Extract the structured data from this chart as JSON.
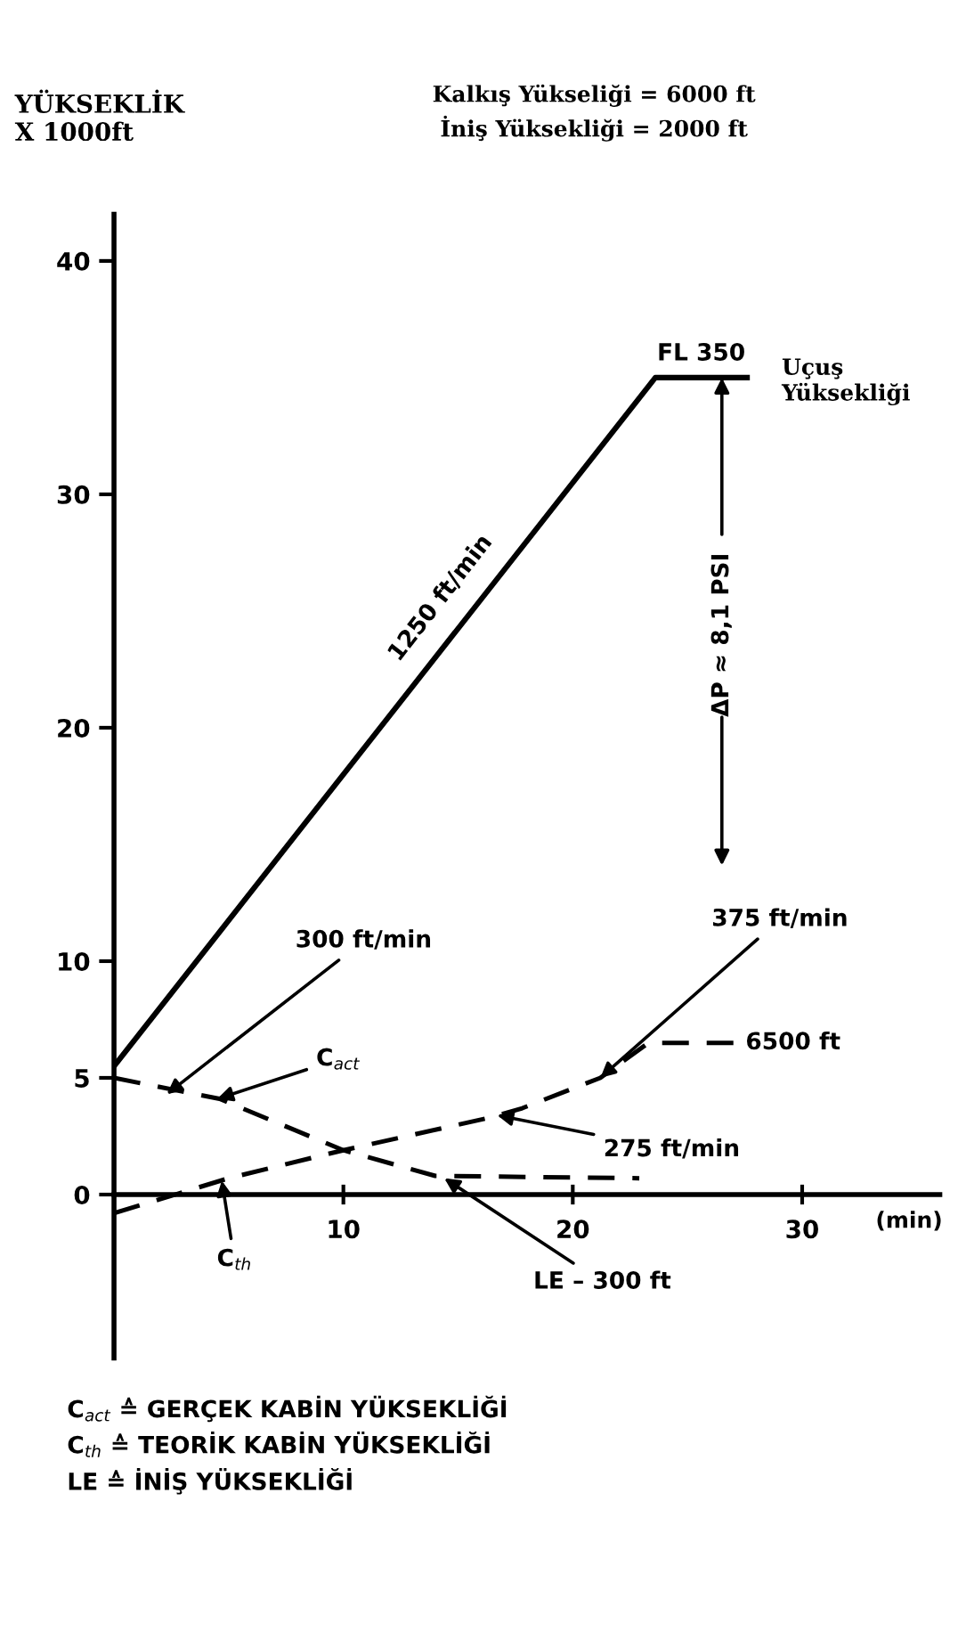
{
  "chart_data": {
    "type": "line",
    "ylabel": "YÜKSEKLİK\nX 1000ft",
    "xlabel": "(min)",
    "series": [
      {
        "color": "#000000",
        "line_style": "solid",
        "x": [
          0,
          23.6,
          27.6
        ],
        "values": [
          5.5,
          35,
          35
        ]
      },
      {
        "color": "#000000",
        "line_style": "dashed",
        "x": [
          0,
          4.6,
          10,
          14,
          22.9
        ],
        "values": [
          5,
          4.1,
          1.9,
          0.8,
          0.7
        ]
      },
      {
        "color": "#000000",
        "line_style": "dashed",
        "x": [
          0,
          5,
          10,
          16.4,
          17.8,
          21.2,
          23.3,
          27.1
        ],
        "values": [
          -0.8,
          0.7,
          1.9,
          3.3,
          3.7,
          5.0,
          6.5,
          6.5
        ]
      }
    ],
    "xlim": [
      0,
      36
    ],
    "ylim": [
      -7,
      42
    ],
    "xticks": [
      10,
      20,
      30
    ],
    "yticks": [
      0,
      5,
      10,
      20,
      30,
      40
    ],
    "grid": false,
    "legend": false,
    "marker": "none",
    "annotations": [
      {
        "text": "1250 ft/min",
        "x": 15,
        "y": 24.8
      },
      {
        "text": "FL 350",
        "x": 25.6,
        "y": 35
      },
      {
        "text": "Uçuş\nYüksekliği",
        "x": 27.6,
        "y": 35
      },
      {
        "text": "ΔP ≈ 8,1 PSI",
        "x": 26.5,
        "y": 35
      },
      {
        "text": "300 ft/min",
        "x": 2.3,
        "y": 4.3
      },
      {
        "text": "C$_{act}$",
        "x": 4.5,
        "y": 4.1
      },
      {
        "text": "375 ft/min",
        "x": 21.2,
        "y": 5.0
      },
      {
        "text": "6500 ft",
        "x": 27.1,
        "y": 6.5
      },
      {
        "text": "275 ft/min",
        "x": 16.7,
        "y": 3.4
      },
      {
        "text": "C$_{th}$",
        "x": 4.7,
        "y": 0.6
      },
      {
        "text": "LE – 300 ft",
        "x": 14.4,
        "y": 0.7
      },
      "Kalkış Yükseliği = 6000 ft",
      "İniş Yüksekliği = 2000 ft",
      "C$_{act}$ ≙ GERÇEK KABİN YÜKSEKLİĞİ",
      "C$_{th}$ ≙ TEORİK KABİN YÜKSEKLİĞİ",
      "LE ≙ İNİŞ YÜKSEKLİĞİ"
    ]
  }
}
